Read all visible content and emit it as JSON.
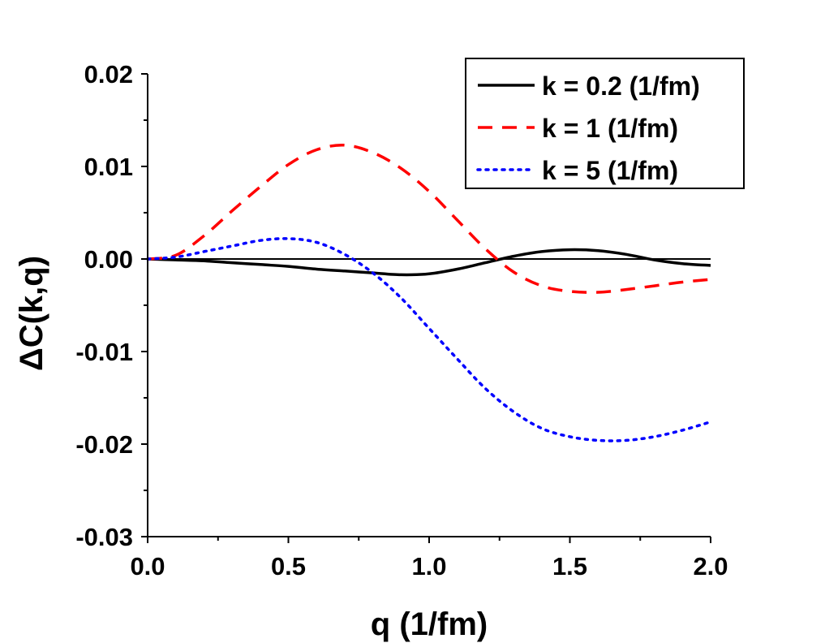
{
  "chart_data": {
    "type": "line",
    "xlabel": "q (1/fm)",
    "ylabel": "ΔC(k,q)",
    "xlim": [
      0.0,
      2.0
    ],
    "ylim": [
      -0.03,
      0.02
    ],
    "x_ticks": [
      0.0,
      0.5,
      1.0,
      1.5,
      2.0
    ],
    "x_tick_labels": [
      "0.0",
      "0.5",
      "1.0",
      "1.5",
      "2.0"
    ],
    "y_ticks": [
      -0.03,
      -0.02,
      -0.01,
      0.0,
      0.01,
      0.02
    ],
    "y_tick_labels": [
      "-0.03",
      "-0.02",
      "-0.01",
      "0.00",
      "0.01",
      "0.02"
    ],
    "reference_line": {
      "y": 0.0,
      "color": "#000000"
    },
    "grid": false,
    "legend_position": "top-right",
    "series": [
      {
        "name": "k = 0.2 (1/fm)",
        "color": "#000000",
        "style": "solid",
        "x": [
          0.0,
          0.1,
          0.2,
          0.3,
          0.4,
          0.5,
          0.6,
          0.7,
          0.8,
          0.9,
          1.0,
          1.1,
          1.2,
          1.3,
          1.4,
          1.5,
          1.6,
          1.7,
          1.8,
          1.9,
          2.0
        ],
        "y": [
          0.0,
          -0.0001,
          -0.0002,
          -0.0004,
          -0.0006,
          -0.0008,
          -0.0011,
          -0.0013,
          -0.0015,
          -0.0017,
          -0.0016,
          -0.0011,
          -0.0004,
          0.0003,
          0.0008,
          0.001,
          0.0009,
          0.0005,
          -0.0001,
          -0.0005,
          -0.0007
        ]
      },
      {
        "name": "k = 1 (1/fm)",
        "color": "#ff0000",
        "style": "dashed",
        "x": [
          0.0,
          0.1,
          0.2,
          0.3,
          0.4,
          0.5,
          0.6,
          0.7,
          0.8,
          0.9,
          1.0,
          1.1,
          1.2,
          1.3,
          1.4,
          1.5,
          1.6,
          1.7,
          1.8,
          1.9,
          2.0
        ],
        "y": [
          0.0,
          0.0004,
          0.0025,
          0.0052,
          0.0078,
          0.0102,
          0.0118,
          0.0123,
          0.0115,
          0.0098,
          0.0073,
          0.0042,
          0.0011,
          -0.0014,
          -0.0029,
          -0.0035,
          -0.0036,
          -0.0033,
          -0.0029,
          -0.0025,
          -0.0022
        ]
      },
      {
        "name": "k = 5 (1/fm)",
        "color": "#0000ff",
        "style": "dotted",
        "x": [
          0.0,
          0.1,
          0.2,
          0.3,
          0.4,
          0.5,
          0.6,
          0.7,
          0.8,
          0.9,
          1.0,
          1.1,
          1.2,
          1.3,
          1.4,
          1.5,
          1.6,
          1.7,
          1.8,
          1.9,
          2.0
        ],
        "y": [
          0.0,
          0.0002,
          0.0008,
          0.0014,
          0.002,
          0.0022,
          0.0018,
          0.0005,
          -0.0015,
          -0.0042,
          -0.0075,
          -0.0108,
          -0.014,
          -0.0165,
          -0.0183,
          -0.0192,
          -0.0196,
          -0.0196,
          -0.0192,
          -0.0185,
          -0.0176
        ]
      }
    ]
  }
}
